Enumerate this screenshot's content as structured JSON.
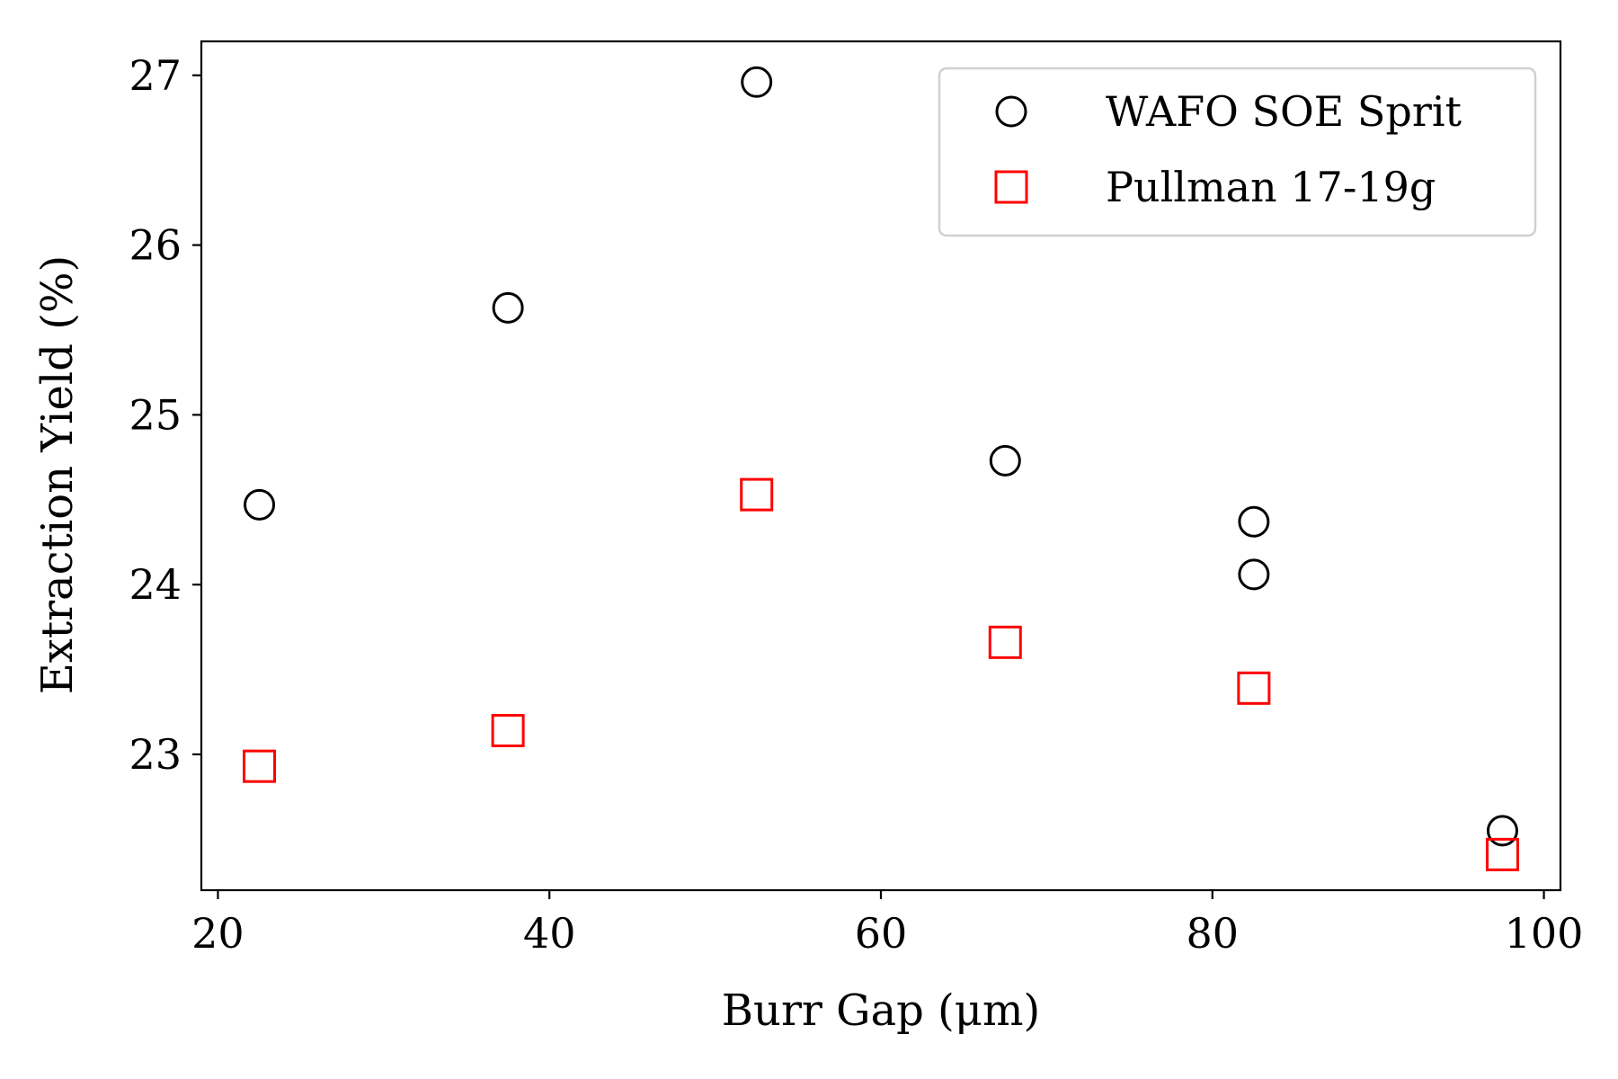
{
  "chart_data": {
    "type": "scatter",
    "xlabel": "Burr Gap (μm)",
    "ylabel": "Extraction Yield (%)",
    "xlim": [
      19,
      101
    ],
    "ylim": [
      22.2,
      27.2
    ],
    "xticks": [
      20,
      40,
      60,
      80,
      100
    ],
    "yticks": [
      23,
      24,
      25,
      26,
      27
    ],
    "grid": false,
    "legend": {
      "position": "top-right"
    },
    "series": [
      {
        "name": "WAFO SOE Sprit",
        "marker": "circle",
        "color": "#000000",
        "x": [
          22.5,
          37.5,
          52.5,
          67.5,
          82.5,
          82.5,
          97.5
        ],
        "y": [
          24.47,
          25.63,
          26.96,
          24.73,
          24.37,
          24.06,
          22.55
        ]
      },
      {
        "name": "Pullman 17-19g",
        "marker": "square",
        "color": "#ff0000",
        "x": [
          22.5,
          37.5,
          52.5,
          67.5,
          82.5,
          97.5
        ],
        "y": [
          22.93,
          23.14,
          24.53,
          23.66,
          23.39,
          22.41
        ]
      }
    ]
  }
}
